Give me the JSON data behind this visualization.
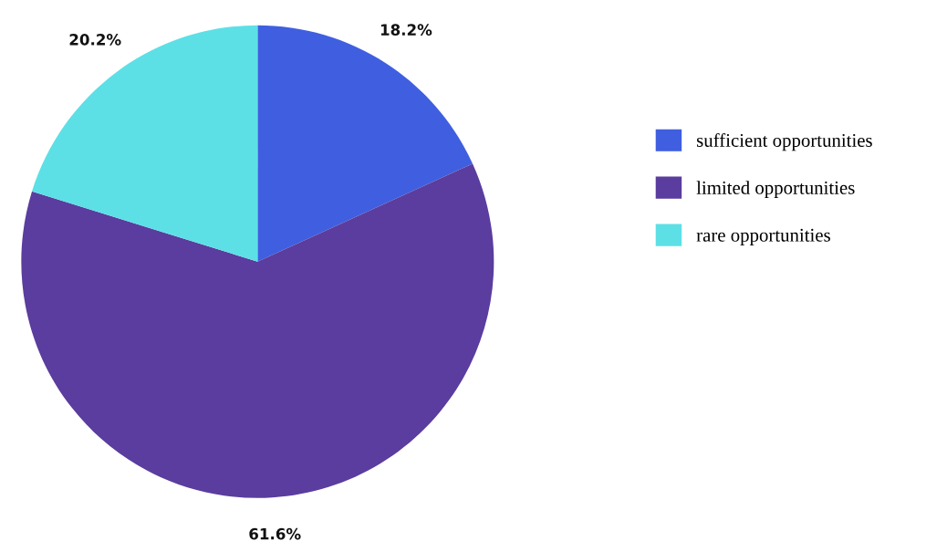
{
  "chart_data": {
    "type": "pie",
    "categories": [
      "sufficient opportunities",
      "limited opportunities",
      "rare opportunities"
    ],
    "values": [
      18.2,
      61.6,
      20.2
    ],
    "colors": [
      "#3f5fe0",
      "#5a3d9e",
      "#5ce0e6"
    ],
    "value_labels": [
      "18.2%",
      "61.6%",
      "20.2%"
    ],
    "legend": "right"
  }
}
